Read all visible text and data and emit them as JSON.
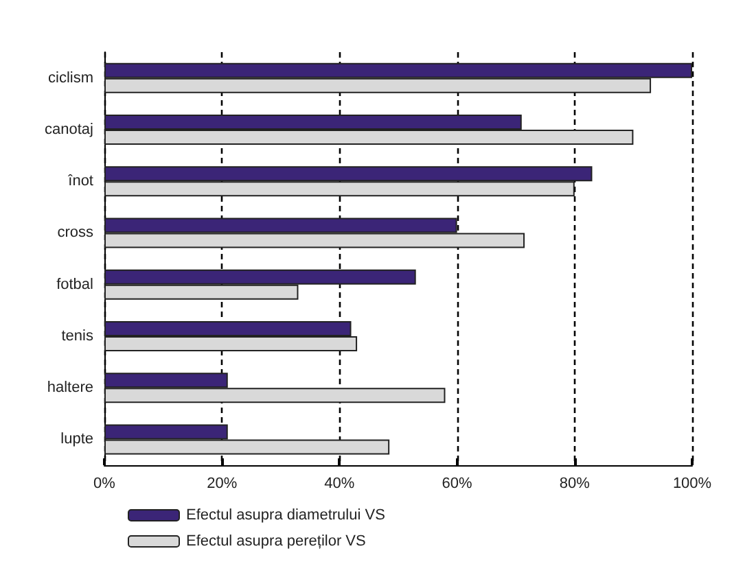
{
  "chart_data": {
    "type": "bar",
    "orientation": "horizontal",
    "categories": [
      "ciclism",
      "canotaj",
      "înot",
      "cross",
      "fotbal",
      "tenis",
      "haltere",
      "lupte"
    ],
    "series": [
      {
        "name": "Efectul asupra diametrului VS",
        "color": "#3b2577",
        "values": [
          100,
          71,
          83,
          60,
          53,
          42,
          21,
          21
        ]
      },
      {
        "name": "Efectul asupra pereților VS",
        "color": "#d9d9d9",
        "values": [
          93,
          90,
          80,
          71.5,
          33,
          43,
          58,
          48.5
        ]
      }
    ],
    "xlim": [
      0,
      100
    ],
    "xticks": [
      {
        "value": 0,
        "label": "0%"
      },
      {
        "value": 20,
        "label": "20%"
      },
      {
        "value": 40,
        "label": "40%"
      },
      {
        "value": 60,
        "label": "60%"
      },
      {
        "value": 80,
        "label": "80%"
      },
      {
        "value": 100,
        "label": "100%"
      }
    ],
    "grid": "x",
    "legend": "bottom left"
  }
}
